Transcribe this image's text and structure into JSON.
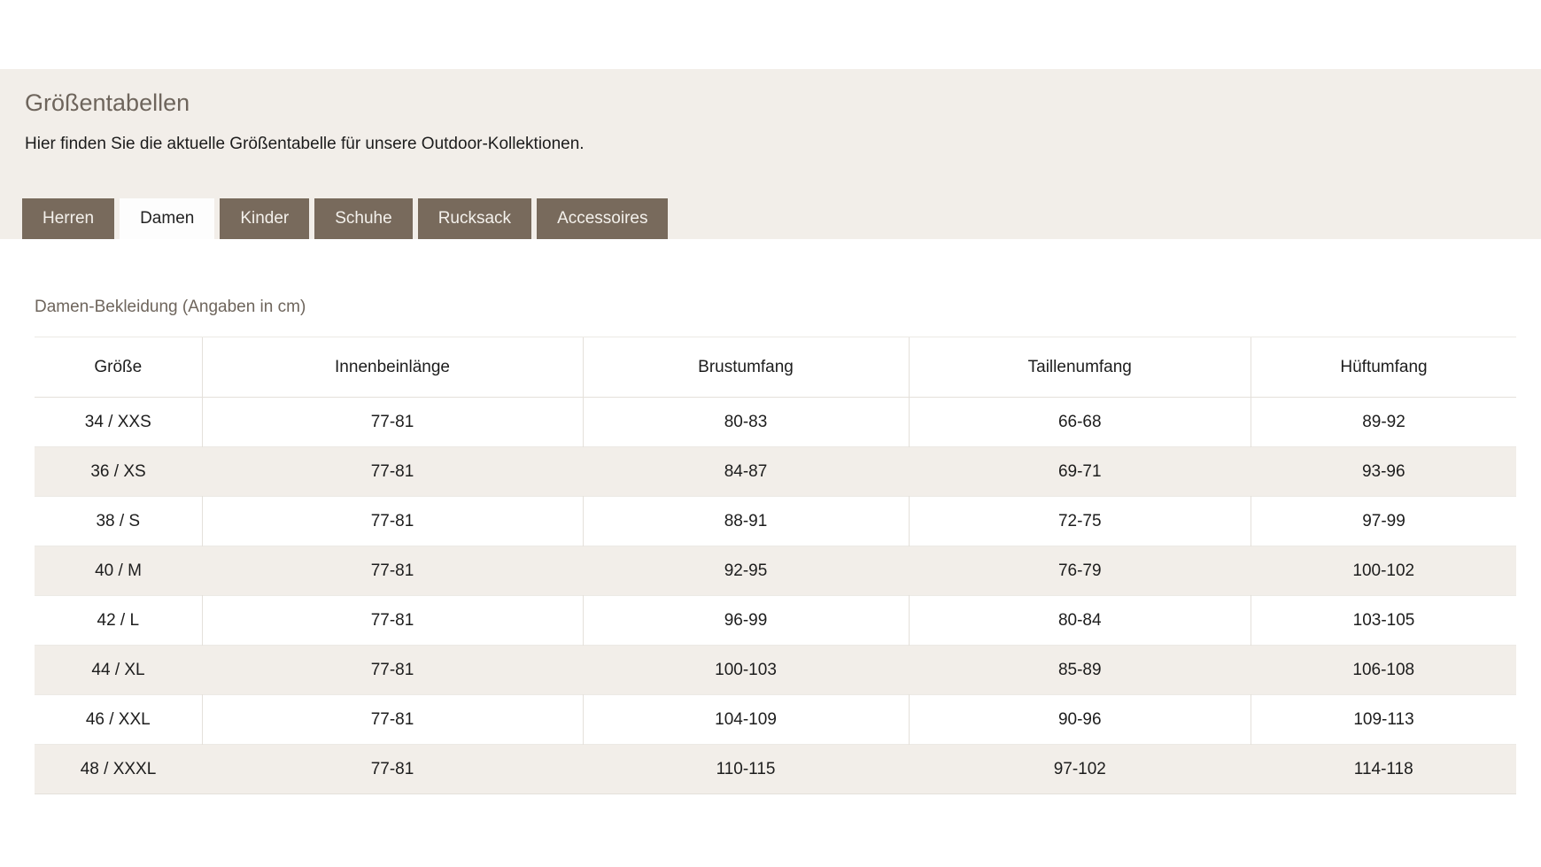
{
  "page": {
    "title": "Größentabellen",
    "subtitle": "Hier finden Sie die aktuelle Größentabelle für unsere Outdoor-Kollektionen."
  },
  "tabs": [
    {
      "label": "Herren",
      "active": false
    },
    {
      "label": "Damen",
      "active": true
    },
    {
      "label": "Kinder",
      "active": false
    },
    {
      "label": "Schuhe",
      "active": false
    },
    {
      "label": "Rucksack",
      "active": false
    },
    {
      "label": "Accessoires",
      "active": false
    }
  ],
  "section": {
    "heading": "Damen-Bekleidung (Angaben in cm)"
  },
  "table": {
    "headers": [
      "Größe",
      "Innenbeinlänge",
      "Brustumfang",
      "Taillenumfang",
      "Hüftumfang"
    ],
    "rows": [
      [
        "34 / XXS",
        "77-81",
        "80-83",
        "66-68",
        "89-92"
      ],
      [
        "36 / XS",
        "77-81",
        "84-87",
        "69-71",
        "93-96"
      ],
      [
        "38 / S",
        "77-81",
        "88-91",
        "72-75",
        "97-99"
      ],
      [
        "40 / M",
        "77-81",
        "92-95",
        "76-79",
        "100-102"
      ],
      [
        "42 / L",
        "77-81",
        "96-99",
        "80-84",
        "103-105"
      ],
      [
        "44 / XL",
        "77-81",
        "100-103",
        "85-89",
        "106-108"
      ],
      [
        "46 / XXL",
        "77-81",
        "104-109",
        "90-96",
        "109-113"
      ],
      [
        "48 / XXXL",
        "77-81",
        "110-115",
        "97-102",
        "114-118"
      ]
    ]
  },
  "colors": {
    "header_bg": "#f2eee9",
    "tab_bg": "#786a5c",
    "tab_text": "#f4f1ec",
    "tab_active_bg": "#fdfdfd",
    "accent_text": "#6e655c",
    "row_alt_bg": "#f2eee9",
    "border": "#e4e0da"
  }
}
